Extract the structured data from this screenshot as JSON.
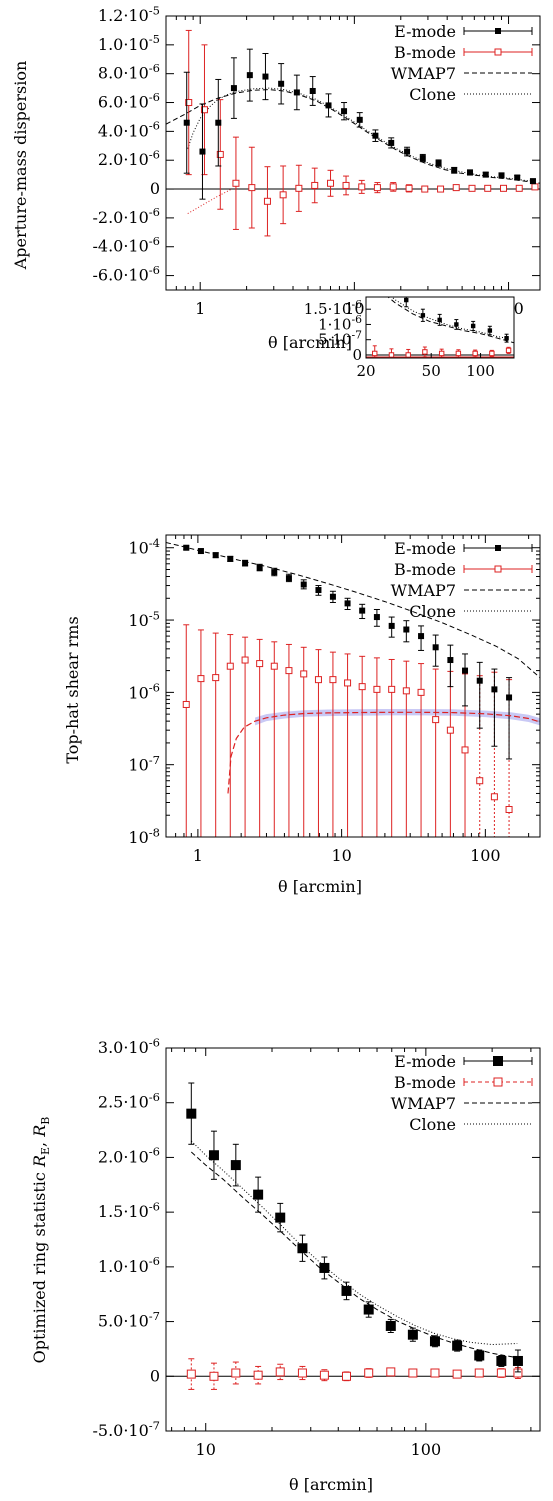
{
  "colors": {
    "emode": "#000000",
    "bmode": "#dd2222",
    "model": "#000000",
    "band": "#bcbcf2"
  },
  "chart_data": [
    {
      "type": "scatter",
      "xscale": "log",
      "xlim": [
        0.6,
        160
      ],
      "ylim": [
        -7e-06,
        1.2e-05
      ],
      "xlabel": "θ [arcmin]",
      "ylabel": "Aperture-mass dispersion",
      "x_ticks": [
        "1",
        "10",
        "100"
      ],
      "y_ticks": [
        "1.2·10-5",
        "1.0·10-5",
        "8.0·10-6",
        "6.0·10-6",
        "4.0·10-6",
        "2.0·10-6",
        "0",
        "-2.0·10-6",
        "-4.0·10-6",
        "-6.0·10-6"
      ],
      "legend": {
        "position": "top-right",
        "entries": [
          "E-mode",
          "B-mode",
          "WMAP7",
          "Clone"
        ]
      },
      "theta": [
        0.83,
        1.05,
        1.33,
        1.68,
        2.13,
        2.69,
        3.4,
        4.3,
        5.45,
        6.9,
        8.7,
        11.0,
        13.9,
        17.6,
        22.3,
        28.2,
        35.7,
        45.1,
        57.1,
        72.2,
        91.4,
        115.6,
        146.2
      ],
      "series": [
        {
          "name": "E-mode",
          "y": [
            4.6e-06,
            2.6e-06,
            4.6e-06,
            7e-06,
            7.9e-06,
            7.8e-06,
            7.3e-06,
            6.7e-06,
            6.8e-06,
            5.8e-06,
            5.4e-06,
            4.8e-06,
            3.7e-06,
            3.2e-06,
            2.6e-06,
            2.15e-06,
            1.8e-06,
            1.3e-06,
            1.15e-06,
            1e-06,
            9.5e-07,
            8e-07,
            5.5e-07
          ],
          "err": [
            3.5e-06,
            3.3e-06,
            3e-06,
            2.1e-06,
            1.8e-06,
            1.6e-06,
            1.4e-06,
            1.2e-06,
            1e-06,
            8e-07,
            6e-07,
            5e-07,
            4e-07,
            3.5e-07,
            3e-07,
            2.5e-07,
            2.2e-07,
            2e-07,
            1.8e-07,
            1.6e-07,
            1.5e-07,
            1.4e-07,
            1.3e-07
          ]
        },
        {
          "name": "B-mode",
          "y": [
            6e-06,
            5.5e-06,
            2.4e-06,
            4e-07,
            1e-07,
            -8.5e-07,
            -4e-07,
            5e-08,
            2.5e-07,
            4e-07,
            2.5e-07,
            1.5e-07,
            1e-07,
            1.5e-07,
            5e-08,
            0.0,
            0.0,
            1e-07,
            5e-08,
            5e-08,
            5e-08,
            5e-08,
            1.5e-07
          ],
          "err": [
            5e-06,
            4.5e-06,
            3.8e-06,
            3.2e-06,
            2.8e-06,
            2.4e-06,
            2e-06,
            1.6e-06,
            1.2e-06,
            9e-07,
            6.5e-07,
            4.5e-07,
            3.5e-07,
            3e-07,
            2.5e-07,
            2e-07,
            1.8e-07,
            1.6e-07,
            1.4e-07,
            1.2e-07,
            1.1e-07,
            1e-07,
            1e-07
          ]
        },
        {
          "name": "WMAP7",
          "x": [
            0.6,
            0.8,
            1.0,
            1.3,
            1.7,
            2.2,
            2.8,
            3.5,
            4.5,
            5.7,
            7.2,
            9.2,
            11.7,
            14.8,
            18.8,
            23.9,
            30.3,
            38.5,
            48.8,
            62,
            78.7,
            100,
            127,
            160
          ],
          "y": [
            4.5e-06,
            5.2e-06,
            5.8e-06,
            6.3e-06,
            6.65e-06,
            6.85e-06,
            6.9e-06,
            6.8e-06,
            6.5e-06,
            6.1e-06,
            5.5e-06,
            4.8e-06,
            4.05e-06,
            3.35e-06,
            2.7e-06,
            2.15e-06,
            1.7e-06,
            1.35e-06,
            1.1e-06,
            9.5e-07,
            8e-07,
            7e-07,
            5.5e-07,
            4e-07
          ]
        },
        {
          "name": "Clone",
          "x": [
            0.83,
            0.9,
            1.0,
            1.15,
            1.3,
            1.5,
            1.8,
            2.2,
            2.8,
            3.5,
            4.5,
            5.7,
            7.2,
            9.2,
            11.7,
            14.8,
            18.8,
            23.9,
            30.3,
            38.5,
            48.8,
            62,
            78.7,
            100,
            127,
            146
          ],
          "y": [
            2.8e-06,
            3.9e-06,
            4.9e-06,
            5.7e-06,
            6.2e-06,
            6.55e-06,
            6.8e-06,
            6.95e-06,
            7e-06,
            6.9e-06,
            6.6e-06,
            6.2e-06,
            5.6e-06,
            4.9e-06,
            4.15e-06,
            3.45e-06,
            2.8e-06,
            2.25e-06,
            1.8e-06,
            1.45e-06,
            1.2e-06,
            1e-06,
            8.5e-07,
            7.5e-07,
            6e-07,
            5.5e-07
          ]
        },
        {
          "name": "Clone B",
          "x": [
            0.83,
            1.0,
            1.3,
            1.6
          ],
          "y": [
            -1.7e-06,
            -1.2e-06,
            -5e-07,
            0.0
          ]
        }
      ],
      "inset": {
        "xscale": "log",
        "xlim": [
          20,
          160
        ],
        "ylim": [
          -1e-07,
          1.9e-06
        ],
        "x_ticks": [
          "20",
          "50",
          "100"
        ],
        "y_ticks": [
          "1.5·10-6",
          "1·10-6",
          "5·10-7",
          "0"
        ]
      }
    },
    {
      "type": "scatter",
      "xscale": "log",
      "yscale": "log",
      "xlim": [
        0.6,
        240
      ],
      "ylim": [
        1e-08,
        0.00015
      ],
      "xlabel": "θ [arcmin]",
      "ylabel": "Top-hat shear rms",
      "x_ticks": [
        "1",
        "10",
        "100"
      ],
      "y_ticks": [
        "10-4",
        "10-5",
        "10-6",
        "10-7",
        "10-8"
      ],
      "legend": {
        "position": "top-right",
        "entries": [
          "E-mode",
          "B-mode",
          "WMAP7",
          "Clone"
        ]
      },
      "theta": [
        0.83,
        1.05,
        1.33,
        1.68,
        2.13,
        2.69,
        3.4,
        4.3,
        5.45,
        6.9,
        8.7,
        11.0,
        13.9,
        17.6,
        22.3,
        28.2,
        35.7,
        45.1,
        57.1,
        72.2,
        91.4,
        115.6,
        146.2
      ],
      "series": [
        {
          "name": "E-mode",
          "y": [
            0.0001,
            9e-05,
            7.9e-05,
            7e-05,
            6.1e-05,
            5.3e-05,
            4.6e-05,
            3.8e-05,
            3.1e-05,
            2.6e-05,
            2.1e-05,
            1.7e-05,
            1.35e-05,
            1.1e-05,
            8.3e-06,
            7.4e-06,
            6e-06,
            4.2e-06,
            2.8e-06,
            2e-06,
            1.45e-06,
            1.1e-06,
            8.5e-07
          ],
          "lo": [
            9.4e-05,
            8.4e-05,
            7.3e-05,
            6.5e-05,
            5.6e-05,
            4.8e-05,
            4.1e-05,
            3.4e-05,
            2.7e-05,
            2.2e-05,
            1.75e-05,
            1.4e-05,
            1.05e-05,
            8.2e-06,
            5.8e-06,
            5e-06,
            3.8e-06,
            2.3e-06,
            1.2e-06,
            6.5e-07,
            3.2e-07,
            1.8e-07,
            1.2e-07
          ],
          "hi": [
            0.000106,
            9.6e-05,
            8.5e-05,
            7.6e-05,
            6.7e-05,
            5.9e-05,
            5.2e-05,
            4.3e-05,
            3.6e-05,
            3e-05,
            2.5e-05,
            2e-05,
            1.65e-05,
            1.4e-05,
            1.1e-05,
            9.8e-06,
            8.3e-06,
            6.2e-06,
            4.5e-06,
            3.4e-06,
            2.6e-06,
            2.1e-06,
            1.6e-06
          ]
        },
        {
          "name": "B-mode",
          "y": [
            6.8e-07,
            1.55e-06,
            1.6e-06,
            2.3e-06,
            2.8e-06,
            2.5e-06,
            2.3e-06,
            2e-06,
            1.8e-06,
            1.5e-06,
            1.5e-06,
            1.35e-06,
            1.2e-06,
            1.1e-06,
            1.1e-06,
            1.05e-06,
            1e-06,
            4.2e-07,
            3e-07,
            1.6e-07,
            6e-08,
            3.6e-08,
            2.4e-08
          ],
          "hi": [
            8.6e-06,
            7.3e-06,
            6.6e-06,
            6.3e-06,
            5.8e-06,
            5.4e-06,
            5e-06,
            4.6e-06,
            4.2e-06,
            3.9e-06,
            3.6e-06,
            3.4e-06,
            3.15e-06,
            3e-06,
            2.85e-06,
            2.7e-06,
            2.5e-06,
            2.1e-06,
            1.95e-06,
            1.8e-06,
            1.7e-06,
            1.9e-06,
            1.5e-06
          ]
        },
        {
          "name": "WMAP7",
          "x": [
            0.6,
            0.8,
            1.0,
            1.5,
            2.0,
            3.0,
            5.0,
            8.0,
            12,
            20,
            30,
            50,
            80,
            120,
            170,
            240
          ],
          "y": [
            0.000118,
            0.000103,
            9.2e-05,
            7.6e-05,
            6.6e-05,
            5.5e-05,
            4.2e-05,
            3.2e-05,
            2.5e-05,
            1.8e-05,
            1.35e-05,
            9.2e-06,
            6.2e-06,
            4.3e-06,
            2.9e-06,
            1.6e-06
          ]
        },
        {
          "name": "Clone",
          "x": [
            1.62,
            1.7,
            1.85,
            2.1,
            2.5,
            3.0,
            4.0,
            5.5,
            8.0,
            12,
            20,
            35,
            60,
            100,
            150,
            200,
            240
          ],
          "y": [
            4e-08,
            1.3e-07,
            2.3e-07,
            3.3e-07,
            4e-07,
            4.45e-07,
            4.85e-07,
            5.1e-07,
            5.2e-07,
            5.25e-07,
            5.3e-07,
            5.3e-07,
            5.25e-07,
            5.05e-07,
            4.75e-07,
            4.35e-07,
            3.9e-07
          ],
          "band": [
            [
              2.5,
              3.5e-07,
              4.5e-07
            ],
            [
              3.0,
              4e-07,
              5e-07
            ],
            [
              4.0,
              4.35e-07,
              5.4e-07
            ],
            [
              5.5,
              4.6e-07,
              5.65e-07
            ],
            [
              8.0,
              4.7e-07,
              5.8e-07
            ],
            [
              12,
              4.75e-07,
              5.85e-07
            ],
            [
              20,
              4.8e-07,
              5.9e-07
            ],
            [
              35,
              4.8e-07,
              5.9e-07
            ],
            [
              60,
              4.75e-07,
              5.85e-07
            ],
            [
              100,
              4.55e-07,
              5.6e-07
            ],
            [
              150,
              4.25e-07,
              5.3e-07
            ],
            [
              200,
              3.9e-07,
              4.9e-07
            ],
            [
              240,
              3.5e-07,
              4.4e-07
            ]
          ]
        }
      ]
    },
    {
      "type": "scatter",
      "xscale": "log",
      "xlim": [
        6.6,
        330
      ],
      "ylim": [
        -5e-07,
        3e-06
      ],
      "xlabel": "θ [arcmin]",
      "ylabel": "Optimized ring statistic RE, RB",
      "x_ticks": [
        "10",
        "100"
      ],
      "y_ticks": [
        "3.0·10-6",
        "2.5·10-6",
        "2.0·10-6",
        "1.5·10-6",
        "1.0·10-6",
        "5.0·10-7",
        "0",
        "-5.0·10-7"
      ],
      "legend": {
        "position": "top-right",
        "entries": [
          "E-mode",
          "B-mode",
          "WMAP7",
          "Clone"
        ]
      },
      "theta": [
        8.6,
        10.9,
        13.7,
        17.3,
        21.8,
        27.5,
        34.6,
        43.6,
        55.0,
        69.3,
        87.3,
        110,
        138.7,
        174.8,
        220.3,
        262
      ],
      "series": [
        {
          "name": "E-mode",
          "y": [
            2.4e-06,
            2.02e-06,
            1.93e-06,
            1.66e-06,
            1.45e-06,
            1.17e-06,
            9.9e-07,
            7.8e-07,
            6.1e-07,
            4.6e-07,
            3.8e-07,
            3.2e-07,
            2.8e-07,
            1.9e-07,
            1.4e-07,
            1.4e-07
          ],
          "err": [
            2.8e-07,
            2.2e-07,
            1.9e-07,
            1.6e-07,
            1.3e-07,
            1.2e-07,
            1e-07,
            8e-08,
            7e-08,
            6e-08,
            6e-08,
            5e-08,
            5e-08,
            5e-08,
            5e-08,
            1e-07
          ]
        },
        {
          "name": "B-mode",
          "y": [
            2e-08,
            0.0,
            3e-08,
            1e-08,
            4e-08,
            3e-08,
            1e-08,
            0.0,
            3e-08,
            4e-08,
            3e-08,
            3e-08,
            2e-08,
            3e-08,
            3e-08,
            3e-08
          ],
          "err": [
            1.4e-07,
            1.2e-07,
            1e-07,
            8e-08,
            7e-08,
            6e-08,
            5e-08,
            4e-08,
            4e-08,
            3e-08,
            3e-08,
            3e-08,
            3e-08,
            3e-08,
            4e-08,
            5e-08
          ]
        },
        {
          "name": "WMAP7",
          "x": [
            8.6,
            10,
            12,
            15,
            18,
            22,
            27,
            33,
            40,
            50,
            60,
            75,
            90,
            110,
            135,
            160,
            200,
            260
          ],
          "y": [
            2.05e-06,
            1.93e-06,
            1.8e-06,
            1.62e-06,
            1.48e-06,
            1.32e-06,
            1.15e-06,
            9.9e-07,
            8.6e-07,
            7.1e-07,
            6.1e-07,
            5e-07,
            4.3e-07,
            3.6e-07,
            3e-07,
            2.6e-07,
            2.1e-07,
            1.7e-07
          ]
        },
        {
          "name": "Clone",
          "x": [
            8.6,
            10,
            12,
            15,
            18,
            22,
            27,
            33,
            40,
            50,
            60,
            75,
            90,
            110,
            135,
            160,
            200,
            260
          ],
          "y": [
            2.15e-06,
            2.02e-06,
            1.88e-06,
            1.7e-06,
            1.55e-06,
            1.38e-06,
            1.2e-06,
            1.04e-06,
            9e-07,
            7.5e-07,
            6.5e-07,
            5.4e-07,
            4.6e-07,
            3.9e-07,
            3.4e-07,
            3.1e-07,
            2.9e-07,
            3e-07
          ]
        }
      ]
    }
  ]
}
